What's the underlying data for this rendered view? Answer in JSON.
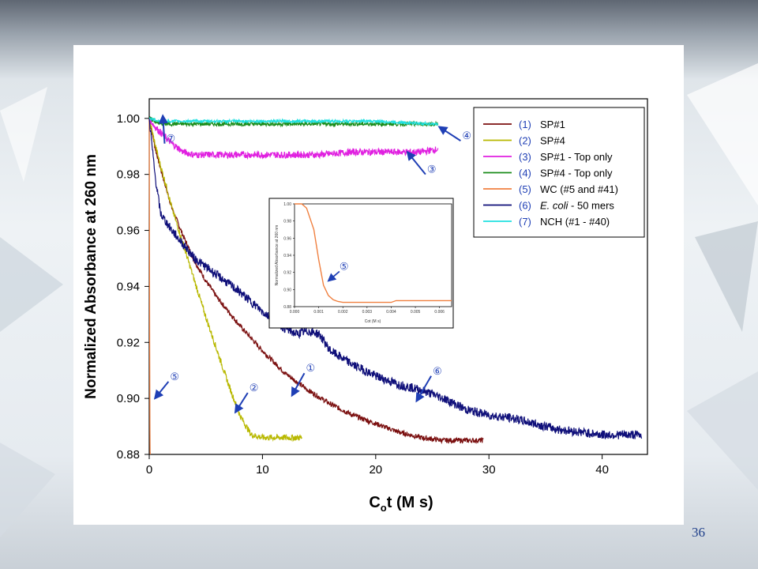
{
  "slide": {
    "number": "36"
  },
  "chart_data": {
    "type": "line",
    "title": "",
    "xlabel": "Cot (M s)",
    "xlabel_parts": {
      "main": "C",
      "sub": "o",
      "rest": "t (M s)"
    },
    "ylabel": "Normalized Absorbance at 260 nm",
    "xlim": [
      0,
      44
    ],
    "ylim": [
      0.88,
      1.007
    ],
    "xticks": [
      "0",
      "10",
      "20",
      "30",
      "40"
    ],
    "yticks": [
      "0.88",
      "0.90",
      "0.92",
      "0.94",
      "0.96",
      "0.98",
      "1.00"
    ],
    "grid": false,
    "legend_position": "top-right",
    "series": [
      {
        "num": "(1)",
        "name": "SP#1",
        "color": "#7b1010",
        "x": [
          0,
          0.5,
          1,
          1.5,
          2,
          3,
          4,
          5,
          6,
          8,
          10,
          12,
          14,
          16,
          18,
          20,
          22,
          24,
          26,
          28,
          29.5
        ],
        "y": [
          1.0,
          0.99,
          0.982,
          0.975,
          0.968,
          0.958,
          0.949,
          0.942,
          0.936,
          0.926,
          0.917,
          0.909,
          0.903,
          0.898,
          0.894,
          0.891,
          0.888,
          0.886,
          0.885,
          0.885,
          0.885
        ]
      },
      {
        "num": "(2)",
        "name": "SP#4",
        "color": "#b8b800",
        "x": [
          0,
          0.5,
          1,
          1.5,
          2,
          3,
          4,
          5,
          6,
          7,
          8,
          9,
          10,
          11,
          12,
          13.5
        ],
        "y": [
          1.0,
          0.991,
          0.983,
          0.976,
          0.968,
          0.955,
          0.942,
          0.929,
          0.917,
          0.905,
          0.894,
          0.887,
          0.886,
          0.886,
          0.886,
          0.886
        ]
      },
      {
        "num": "(3)",
        "name": "SP#1 - Top only",
        "color": "#e020e0",
        "x": [
          0,
          0.5,
          1,
          2,
          3,
          4,
          5,
          6,
          8,
          10,
          12,
          15,
          18,
          21,
          24,
          25.5
        ],
        "y": [
          1.0,
          0.997,
          0.995,
          0.991,
          0.988,
          0.987,
          0.987,
          0.987,
          0.987,
          0.987,
          0.987,
          0.987,
          0.988,
          0.988,
          0.988,
          0.989
        ]
      },
      {
        "num": "(4)",
        "name": "SP#4 - Top only",
        "color": "#1a8c1a",
        "x": [
          0,
          1,
          3,
          6,
          10,
          15,
          20,
          25,
          25.5
        ],
        "y": [
          1.0,
          0.998,
          0.998,
          0.998,
          0.998,
          0.998,
          0.998,
          0.998,
          0.998
        ]
      },
      {
        "num": "(5)",
        "name": "WC (#5 and #41)",
        "color": "#f08040",
        "x": [
          0,
          0.02,
          0.04,
          0.06,
          0.08,
          0.1
        ],
        "y": [
          1.0,
          0.96,
          0.92,
          0.89,
          0.881,
          0.88
        ]
      },
      {
        "num": "(6)",
        "name": "E. coli - 50 mers",
        "name_italic_part": "E. coli",
        "name_rest": " - 50 mers",
        "color": "#10107a",
        "x": [
          0,
          0.5,
          1,
          2,
          3,
          4,
          6,
          8,
          10,
          12,
          13,
          14,
          15,
          16,
          18,
          20,
          22,
          24,
          26,
          28,
          30,
          32,
          34,
          36,
          38,
          40,
          42,
          43.5
        ],
        "y": [
          1.0,
          0.98,
          0.966,
          0.96,
          0.955,
          0.95,
          0.944,
          0.938,
          0.931,
          0.925,
          0.923,
          0.924,
          0.923,
          0.917,
          0.912,
          0.908,
          0.905,
          0.903,
          0.9,
          0.896,
          0.894,
          0.893,
          0.891,
          0.889,
          0.888,
          0.887,
          0.887,
          0.887
        ]
      },
      {
        "num": "(7)",
        "name": "NCH (#1 - #40)",
        "color": "#20e0e0",
        "x": [
          0,
          1,
          3,
          6,
          10,
          15,
          20,
          25,
          25.5
        ],
        "y": [
          1.0,
          0.999,
          0.999,
          0.999,
          0.999,
          0.999,
          0.999,
          0.998,
          0.998
        ]
      }
    ],
    "callouts": [
      {
        "label": "⑦",
        "x": 1.2,
        "y": 1.001
      },
      {
        "label": "④",
        "x": 25.6,
        "y": 0.997
      },
      {
        "label": "③",
        "x": 22.8,
        "y": 0.988
      },
      {
        "label": "①",
        "x": 12.6,
        "y": 0.901
      },
      {
        "label": "②",
        "x": 7.6,
        "y": 0.895
      },
      {
        "label": "⑥",
        "x": 23.6,
        "y": 0.899
      },
      {
        "label": "⑤",
        "x": 0.5,
        "y": 0.9
      }
    ],
    "inset": {
      "type": "line",
      "xlabel": "Cot (M s)",
      "ylabel": "Normalized Absorbance at 260 nm",
      "xlim": [
        0,
        0.0065
      ],
      "ylim": [
        0.88,
        1.0
      ],
      "xticks": [
        "0.000",
        "0.001",
        "0.002",
        "0.003",
        "0.004",
        "0.005",
        "0.006"
      ],
      "yticks": [
        "0.88",
        "0.90",
        "0.92",
        "0.94",
        "0.96",
        "0.98",
        "1.00"
      ],
      "series": [
        {
          "name": "(5)",
          "color": "#f08040",
          "x": [
            0,
            0.0003,
            0.0005,
            0.0008,
            0.001,
            0.0012,
            0.0014,
            0.0016,
            0.0018,
            0.002,
            0.0025,
            0.003,
            0.0035,
            0.004,
            0.0042,
            0.005,
            0.006,
            0.0065
          ],
          "y": [
            1.0,
            1.0,
            0.995,
            0.97,
            0.935,
            0.905,
            0.893,
            0.888,
            0.886,
            0.885,
            0.885,
            0.885,
            0.885,
            0.885,
            0.887,
            0.887,
            0.887,
            0.887
          ]
        }
      ],
      "callout": {
        "label": "⑤",
        "x": 0.0014,
        "y": 0.91
      }
    }
  }
}
